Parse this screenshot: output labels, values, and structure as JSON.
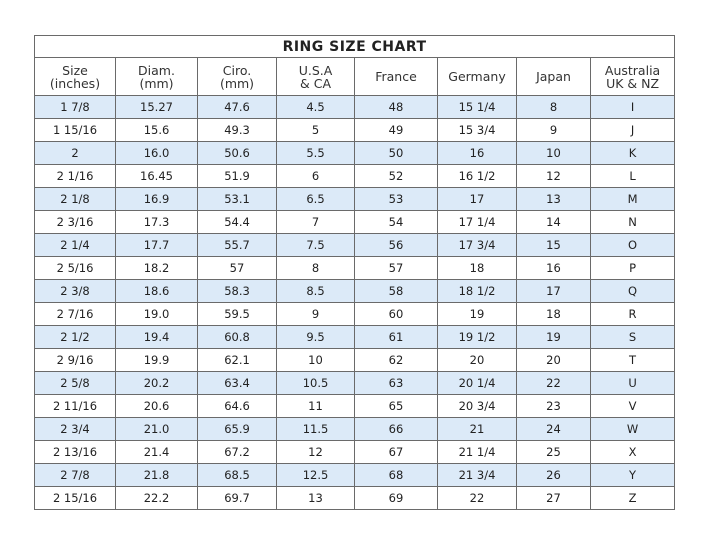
{
  "title": "RING SIZE CHART",
  "headers": [
    [
      "Size",
      "(inches)"
    ],
    [
      "Diam.",
      "(mm)"
    ],
    [
      "Ciro.",
      "(mm)"
    ],
    [
      "U.S.A",
      "& CA"
    ],
    [
      "France",
      ""
    ],
    [
      "Germany",
      ""
    ],
    [
      "Japan",
      ""
    ],
    [
      "Australia",
      "UK & NZ"
    ]
  ],
  "row_shade_color": "#dceaf8",
  "rows": [
    [
      "1 7/8",
      "15.27",
      "47.6",
      "4.5",
      "48",
      "15 1/4",
      "8",
      "I"
    ],
    [
      "1 15/16",
      "15.6",
      "49.3",
      "5",
      "49",
      "15 3/4",
      "9",
      "J"
    ],
    [
      "2",
      "16.0",
      "50.6",
      "5.5",
      "50",
      "16",
      "10",
      "K"
    ],
    [
      "2 1/16",
      "16.45",
      "51.9",
      "6",
      "52",
      "16 1/2",
      "12",
      "L"
    ],
    [
      "2 1/8",
      "16.9",
      "53.1",
      "6.5",
      "53",
      "17",
      "13",
      "M"
    ],
    [
      "2 3/16",
      "17.3",
      "54.4",
      "7",
      "54",
      "17 1/4",
      "14",
      "N"
    ],
    [
      "2 1/4",
      "17.7",
      "55.7",
      "7.5",
      "56",
      "17 3/4",
      "15",
      "O"
    ],
    [
      "2 5/16",
      "18.2",
      "57",
      "8",
      "57",
      "18",
      "16",
      "P"
    ],
    [
      "2 3/8",
      "18.6",
      "58.3",
      "8.5",
      "58",
      "18 1/2",
      "17",
      "Q"
    ],
    [
      "2 7/16",
      "19.0",
      "59.5",
      "9",
      "60",
      "19",
      "18",
      "R"
    ],
    [
      "2 1/2",
      "19.4",
      "60.8",
      "9.5",
      "61",
      "19 1/2",
      "19",
      "S"
    ],
    [
      "2 9/16",
      "19.9",
      "62.1",
      "10",
      "62",
      "20",
      "20",
      "T"
    ],
    [
      "2 5/8",
      "20.2",
      "63.4",
      "10.5",
      "63",
      "20 1/4",
      "22",
      "U"
    ],
    [
      "2 11/16",
      "20.6",
      "64.6",
      "11",
      "65",
      "20 3/4",
      "23",
      "V"
    ],
    [
      "2 3/4",
      "21.0",
      "65.9",
      "11.5",
      "66",
      "21",
      "24",
      "W"
    ],
    [
      "2 13/16",
      "21.4",
      "67.2",
      "12",
      "67",
      "21 1/4",
      "25",
      "X"
    ],
    [
      "2 7/8",
      "21.8",
      "68.5",
      "12.5",
      "68",
      "21 3/4",
      "26",
      "Y"
    ],
    [
      "2 15/16",
      "22.2",
      "69.7",
      "13",
      "69",
      "22",
      "27",
      "Z"
    ]
  ]
}
